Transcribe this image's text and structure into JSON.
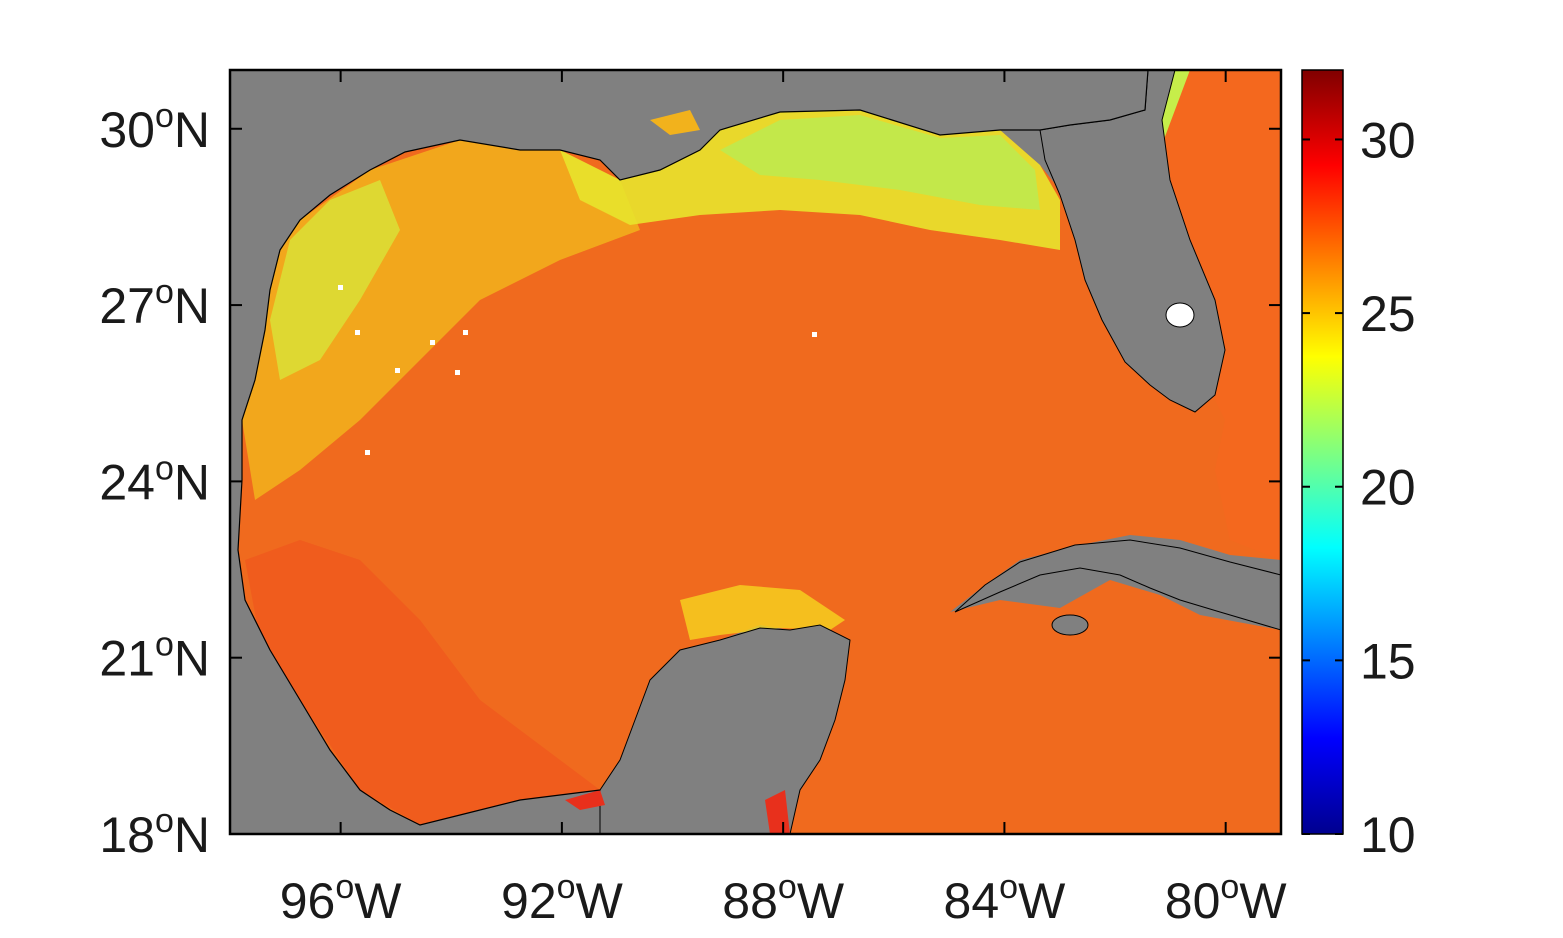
{
  "map": {
    "lat_ticks": [
      {
        "deg": "18",
        "sup": "o",
        "hem": "N",
        "value": 18
      },
      {
        "deg": "21",
        "sup": "o",
        "hem": "N",
        "value": 21
      },
      {
        "deg": "24",
        "sup": "o",
        "hem": "N",
        "value": 24
      },
      {
        "deg": "27",
        "sup": "o",
        "hem": "N",
        "value": 27
      },
      {
        "deg": "30",
        "sup": "o",
        "hem": "N",
        "value": 30
      }
    ],
    "lon_ticks": [
      {
        "deg": "96",
        "sup": "o",
        "hem": "W",
        "value": -96
      },
      {
        "deg": "92",
        "sup": "o",
        "hem": "W",
        "value": -92
      },
      {
        "deg": "88",
        "sup": "o",
        "hem": "W",
        "value": -88
      },
      {
        "deg": "84",
        "sup": "o",
        "hem": "W",
        "value": -84
      },
      {
        "deg": "80",
        "sup": "o",
        "hem": "W",
        "value": -80
      }
    ],
    "lat_range": [
      18,
      31
    ],
    "lon_range": [
      -98,
      -79
    ],
    "land_color": "#808080",
    "colormap": "jet"
  },
  "colorbar": {
    "ticks": [
      {
        "label": "10",
        "value": 10
      },
      {
        "label": "15",
        "value": 15
      },
      {
        "label": "20",
        "value": 20
      },
      {
        "label": "25",
        "value": 25
      },
      {
        "label": "30",
        "value": 30
      }
    ],
    "range": [
      10,
      32
    ]
  }
}
